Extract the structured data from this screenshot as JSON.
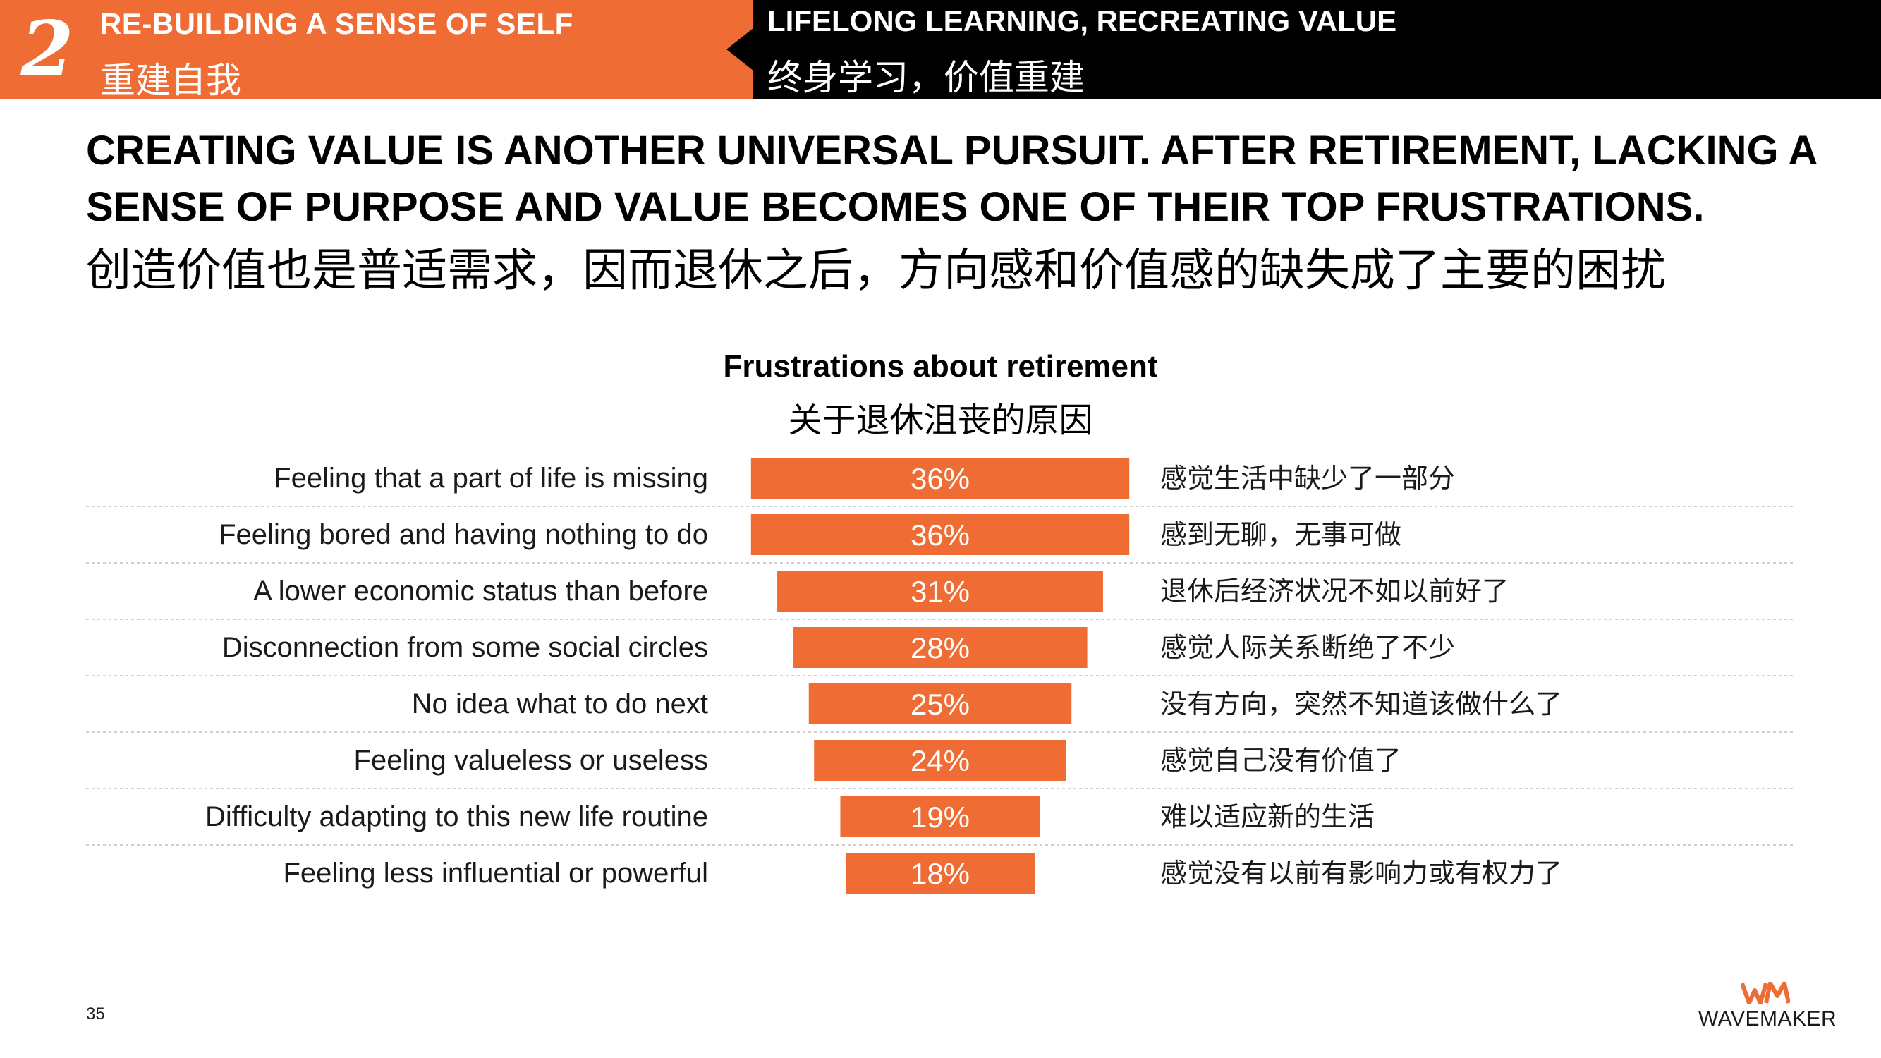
{
  "header": {
    "section_number": "2",
    "section_title_en": "RE-BUILDING A SENSE OF SELF",
    "section_title_zh": "重建自我",
    "subsection_title_en": "LIFELONG LEARNING, RECREATING VALUE",
    "subsection_title_zh": "终身学习，价值重建"
  },
  "headline": {
    "en": "CREATING VALUE IS ANOTHER UNIVERSAL PURSUIT. AFTER RETIREMENT, LACKING A SENSE OF PURPOSE AND VALUE BECOMES ONE OF THEIR TOP FRUSTRATIONS.",
    "zh": "创造价值也是普适需求，因而退休之后，方向感和价值感的缺失成了主要的困扰"
  },
  "chart_data": {
    "type": "bar",
    "orientation": "horizontal",
    "title": "Frustrations about retirement",
    "subtitle": "关于退休沮丧的原因",
    "categories": [
      "Feeling that a part of life is missing",
      "Feeling bored and having nothing to do",
      "A lower economic status than before",
      "Disconnection from some social circles",
      "No idea what to do next",
      "Feeling valueless or useless",
      "Difficulty adapting to this new life routine",
      "Feeling less influential or powerful"
    ],
    "categories_zh": [
      "感觉生活中缺少了一部分",
      "感到无聊，无事可做",
      "退休后经济状况不如以前好了",
      "感觉人际关系断绝了不少",
      "没有方向，突然不知道该做什么了",
      "感觉自己没有价值了",
      "难以适应新的生活",
      "感觉没有以前有影响力或有权力了"
    ],
    "values": [
      36,
      36,
      31,
      28,
      25,
      24,
      19,
      18
    ],
    "value_labels": [
      "36%",
      "36%",
      "31%",
      "28%",
      "25%",
      "24%",
      "19%",
      "18%"
    ],
    "unit": "%",
    "bar_color": "#ef6c35",
    "grid": false
  },
  "footer": {
    "page_number": "35",
    "logo_text": "WAVEMAKER",
    "logo_color": "#ef6c35"
  },
  "colors": {
    "accent": "#ef6c35",
    "header_dark": "#000000"
  }
}
